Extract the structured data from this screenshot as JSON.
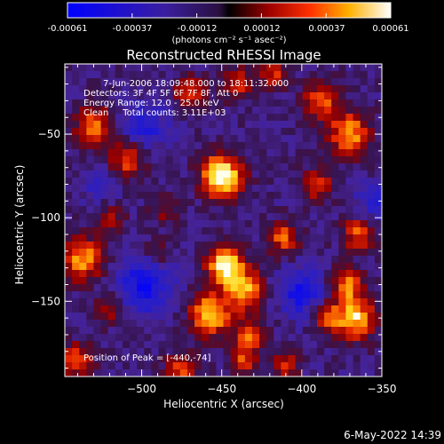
{
  "chart_data": {
    "type": "heatmap",
    "title": "Reconstructed RHESSI Image",
    "xlabel": "Heliocentric X (arcsec)",
    "ylabel": "Heliocentric Y (arcsec)",
    "xlim": [
      -548,
      -350
    ],
    "ylim": [
      -195,
      -8
    ],
    "xticks": [
      -500,
      -450,
      -400,
      -350
    ],
    "yticks": [
      -50,
      -100,
      -150
    ],
    "xtick_labels": [
      "−500",
      "−450",
      "−400",
      "−350"
    ],
    "ytick_labels": [
      "−50",
      "−100",
      "−150"
    ],
    "colorbar": {
      "range": [
        -0.00061,
        0.00061
      ],
      "tick_labels": [
        "-0.00061",
        "-0.00037",
        "-0.00012",
        "0.00012",
        "0.00037",
        "0.00061"
      ],
      "units": "(photons cm⁻² s⁻¹ asec⁻²)"
    },
    "annotations": [
      "7-Jun-2006 18:09:48.000 to 18:11:32.000",
      "Detectors: 3F 4F 5F 6F 7F 8F, Att 0",
      "Energy Range: 12.0 - 25.0 keV",
      "Clean     Total counts: 3.11E+03"
    ],
    "peak_label": "Position of Peak = [-440,-74]",
    "peak": [
      -440,
      -74
    ],
    "blobs": [
      {
        "x": -450,
        "y": -75,
        "amp": 1.0,
        "r": 9
      },
      {
        "x": -448,
        "y": -128,
        "amp": 0.9,
        "r": 8
      },
      {
        "x": -457,
        "y": -158,
        "amp": 0.8,
        "r": 9
      },
      {
        "x": -436,
        "y": -143,
        "amp": 0.75,
        "r": 8
      },
      {
        "x": -432,
        "y": -170,
        "amp": 0.55,
        "r": 7
      },
      {
        "x": -437,
        "y": -185,
        "amp": 0.5,
        "r": 6
      },
      {
        "x": -412,
        "y": -112,
        "amp": 0.55,
        "r": 7
      },
      {
        "x": -370,
        "y": -50,
        "amp": 0.7,
        "r": 9
      },
      {
        "x": -388,
        "y": -30,
        "amp": 0.55,
        "r": 8
      },
      {
        "x": -367,
        "y": -160,
        "amp": 0.8,
        "r": 9
      },
      {
        "x": -372,
        "y": -140,
        "amp": 0.6,
        "r": 7
      },
      {
        "x": -385,
        "y": -160,
        "amp": 0.55,
        "r": 6
      },
      {
        "x": -390,
        "y": -80,
        "amp": 0.5,
        "r": 7
      },
      {
        "x": -365,
        "y": -110,
        "amp": 0.55,
        "r": 7
      },
      {
        "x": -530,
        "y": -45,
        "amp": 0.65,
        "r": 8
      },
      {
        "x": -510,
        "y": -65,
        "amp": 0.55,
        "r": 8
      },
      {
        "x": -537,
        "y": -125,
        "amp": 0.7,
        "r": 9
      },
      {
        "x": -520,
        "y": -155,
        "amp": 0.4,
        "r": 6
      },
      {
        "x": -540,
        "y": -185,
        "amp": 0.55,
        "r": 7
      },
      {
        "x": -520,
        "y": -100,
        "amp": 0.4,
        "r": 6
      },
      {
        "x": -470,
        "y": -25,
        "amp": 0.5,
        "r": 7
      },
      {
        "x": -440,
        "y": -20,
        "amp": 0.45,
        "r": 7
      },
      {
        "x": -418,
        "y": -15,
        "amp": 0.45,
        "r": 6
      },
      {
        "x": -475,
        "y": -190,
        "amp": 0.55,
        "r": 7
      },
      {
        "x": -410,
        "y": -188,
        "amp": 0.4,
        "r": 6
      },
      {
        "x": -490,
        "y": -120,
        "amp": 0.35,
        "r": 6
      },
      {
        "x": -485,
        "y": -95,
        "amp": 0.3,
        "r": 6
      }
    ],
    "negative_regions": [
      {
        "x": -498,
        "y": -140,
        "amp": -0.55,
        "r": 12
      },
      {
        "x": -498,
        "y": -45,
        "amp": -0.4,
        "r": 10
      },
      {
        "x": -400,
        "y": -145,
        "amp": -0.5,
        "r": 10
      },
      {
        "x": -355,
        "y": -90,
        "amp": -0.35,
        "r": 8
      },
      {
        "x": -525,
        "y": -80,
        "amp": -0.3,
        "r": 8
      }
    ]
  },
  "footer": {
    "date": "6-May-2022 14:39"
  }
}
